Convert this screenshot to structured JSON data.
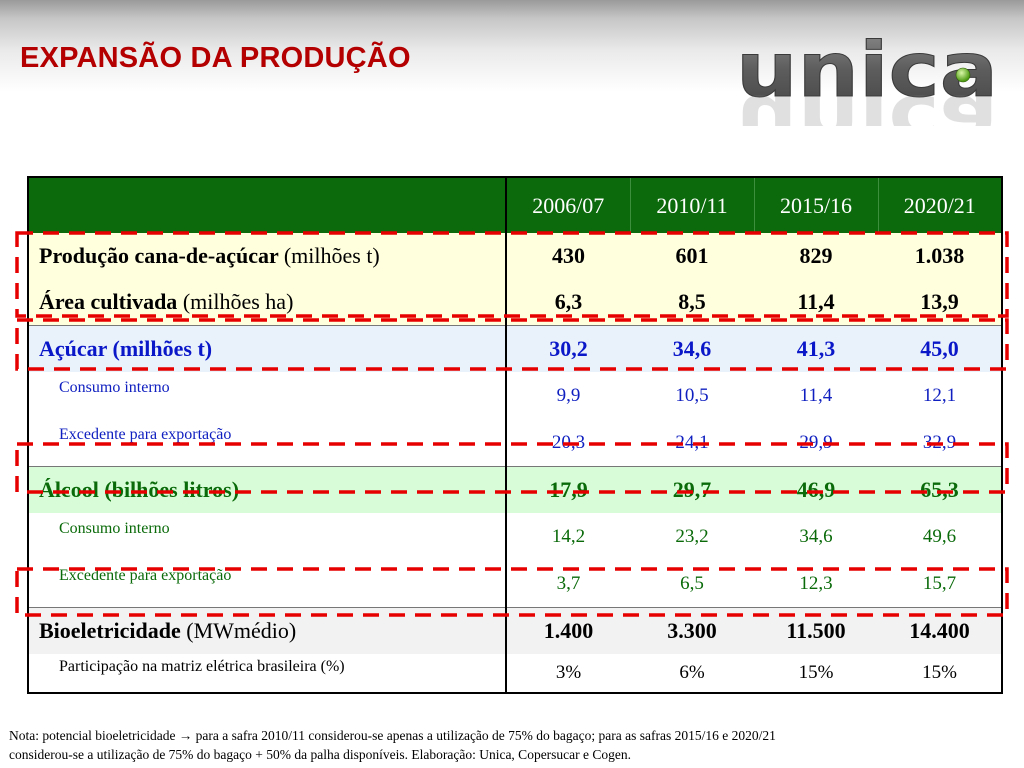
{
  "page": {
    "title": "EXPANSÃO DA PRODUÇÃO"
  },
  "logo": {
    "text": "unica",
    "icon": "green-dot-logo"
  },
  "colors": {
    "title_red": "#b40000",
    "header_green": "#0c6a0c",
    "sugar_blue": "#0a17c8",
    "ethanol_green": "#0a6a0a",
    "highlight_red": "#e60000"
  },
  "table": {
    "columns": [
      "2006/07",
      "2010/11",
      "2015/16",
      "2020/21"
    ],
    "rows": {
      "cana": {
        "label": "Produção cana-de-açúcar",
        "unit": "(milhões t)",
        "values": [
          "430",
          "601",
          "829",
          "1.038"
        ]
      },
      "area": {
        "label": "Área cultivada",
        "unit": "(milhões ha)",
        "values": [
          "6,3",
          "8,5",
          "11,4",
          "13,9"
        ]
      },
      "acucar": {
        "label": "Açúcar (milhões t)",
        "values": [
          "30,2",
          "34,6",
          "41,3",
          "45,0"
        ]
      },
      "acucar_consumo": {
        "label": "Consumo interno",
        "values": [
          "9,9",
          "10,5",
          "11,4",
          "12,1"
        ]
      },
      "acucar_excedente": {
        "label": "Excedente para exportação",
        "values": [
          "20,3",
          "24,1",
          "29,9",
          "32,9"
        ]
      },
      "alcool": {
        "label": "Álcool (bilhões litros)",
        "values": [
          "17,9",
          "29,7",
          "46,9",
          "65,3"
        ]
      },
      "alcool_consumo": {
        "label": "Consumo interno",
        "values": [
          "14,2",
          "23,2",
          "34,6",
          "49,6"
        ]
      },
      "alcool_excedente": {
        "label": "Excedente para exportação",
        "values": [
          "3,7",
          "6,5",
          "12,3",
          "15,7"
        ]
      },
      "bio": {
        "label": "Bioeletricidade",
        "unit": "(MWmédio)",
        "values": [
          "1.400",
          "3.300",
          "11.500",
          "14.400"
        ]
      },
      "participacao": {
        "label": "Participação na matriz elétrica brasileira (%)",
        "values": [
          "3%",
          "6%",
          "15%",
          "15%"
        ]
      }
    }
  },
  "footnote": {
    "line1": "Nota: potencial bioeletricidade → para a safra 2010/11 considerou-se apenas a utilização de 75% do bagaço; para as safras 2015/16 e 2020/21",
    "line2": "considerou-se a utilização de 75% do bagaço + 50% da palha disponíveis. Elaboração: Unica, Copersucar e Cogen."
  }
}
